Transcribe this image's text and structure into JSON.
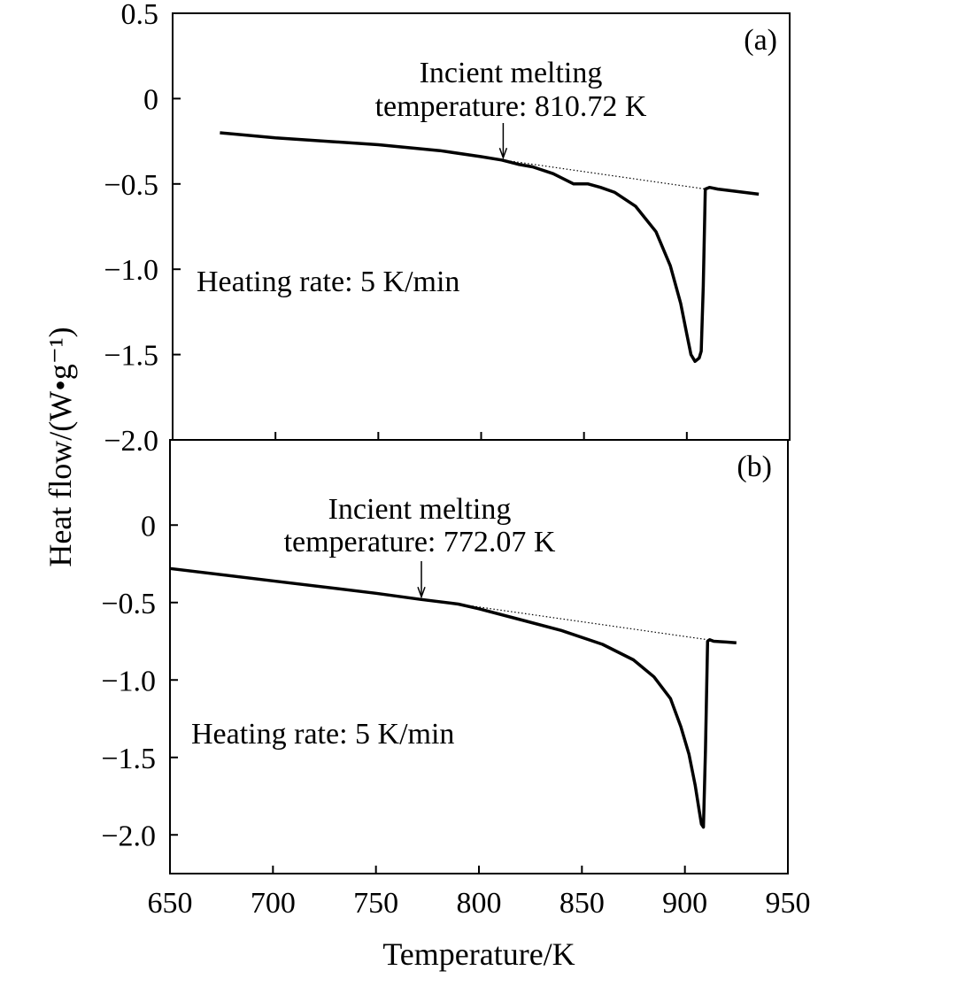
{
  "chart_data": {
    "type": "line",
    "xlabel": "Temperature/K",
    "ylabel": "Heat flow/(W•g⁻¹)",
    "xlim": [
      650,
      950
    ],
    "xticks": [
      "650",
      "700",
      "750",
      "800",
      "850",
      "900",
      "950"
    ],
    "grid": false,
    "panels": [
      {
        "label": "(a)",
        "ylim": [
          -2.0,
          0.5
        ],
        "yticks": [
          "0.5",
          "0",
          "−0.5",
          "−1.0",
          "−1.5",
          "−2.0"
        ],
        "yticks_values": [
          0.5,
          0,
          -0.5,
          -1.0,
          -1.5,
          -2.0
        ],
        "annotation_line1": "Incient melting",
        "annotation_line2": "temperature: 810.72 K",
        "arrow_x": 810.72,
        "rate_label": "Heating rate: 5 K/min",
        "curve": {
          "x": [
            673,
            700,
            750,
            780,
            800,
            810,
            818,
            825,
            835,
            845,
            852,
            858,
            865,
            875,
            885,
            892,
            897,
            900,
            902,
            904,
            906,
            907,
            908,
            909,
            911,
            915,
            925,
            935
          ],
          "y": [
            -0.2,
            -0.23,
            -0.27,
            -0.305,
            -0.34,
            -0.36,
            -0.385,
            -0.4,
            -0.44,
            -0.5,
            -0.5,
            -0.52,
            -0.55,
            -0.63,
            -0.78,
            -0.98,
            -1.2,
            -1.38,
            -1.5,
            -1.54,
            -1.52,
            -1.48,
            -1.1,
            -0.53,
            -0.52,
            -0.53,
            -0.545,
            -0.56
          ]
        },
        "baseline": {
          "x": [
            810.72,
            909
          ],
          "y": [
            -0.36,
            -0.53
          ]
        }
      },
      {
        "label": "(b)",
        "ylim": [
          -2.25,
          0.55
        ],
        "yticks": [
          "0",
          "−0.5",
          "−1.0",
          "−1.5",
          "−2.0"
        ],
        "yticks_values": [
          0,
          -0.5,
          -1.0,
          -1.5,
          -2.0
        ],
        "annotation_line1": "Incient melting",
        "annotation_line2": "temperature: 772.07 K",
        "arrow_x": 772.07,
        "rate_label": "Heating rate: 5 K/min",
        "curve": {
          "x": [
            650,
            700,
            750,
            772,
            790,
            800,
            820,
            840,
            860,
            875,
            885,
            893,
            898,
            902,
            905,
            907,
            908,
            909,
            910,
            911,
            912,
            914,
            920,
            925
          ],
          "y": [
            -0.28,
            -0.36,
            -0.44,
            -0.48,
            -0.51,
            -0.54,
            -0.61,
            -0.68,
            -0.77,
            -0.87,
            -0.98,
            -1.12,
            -1.3,
            -1.48,
            -1.68,
            -1.85,
            -1.93,
            -1.95,
            -1.45,
            -0.75,
            -0.74,
            -0.75,
            -0.755,
            -0.76
          ]
        },
        "baseline": {
          "x": [
            790,
            911
          ],
          "y": [
            -0.51,
            -0.74
          ]
        }
      }
    ]
  }
}
